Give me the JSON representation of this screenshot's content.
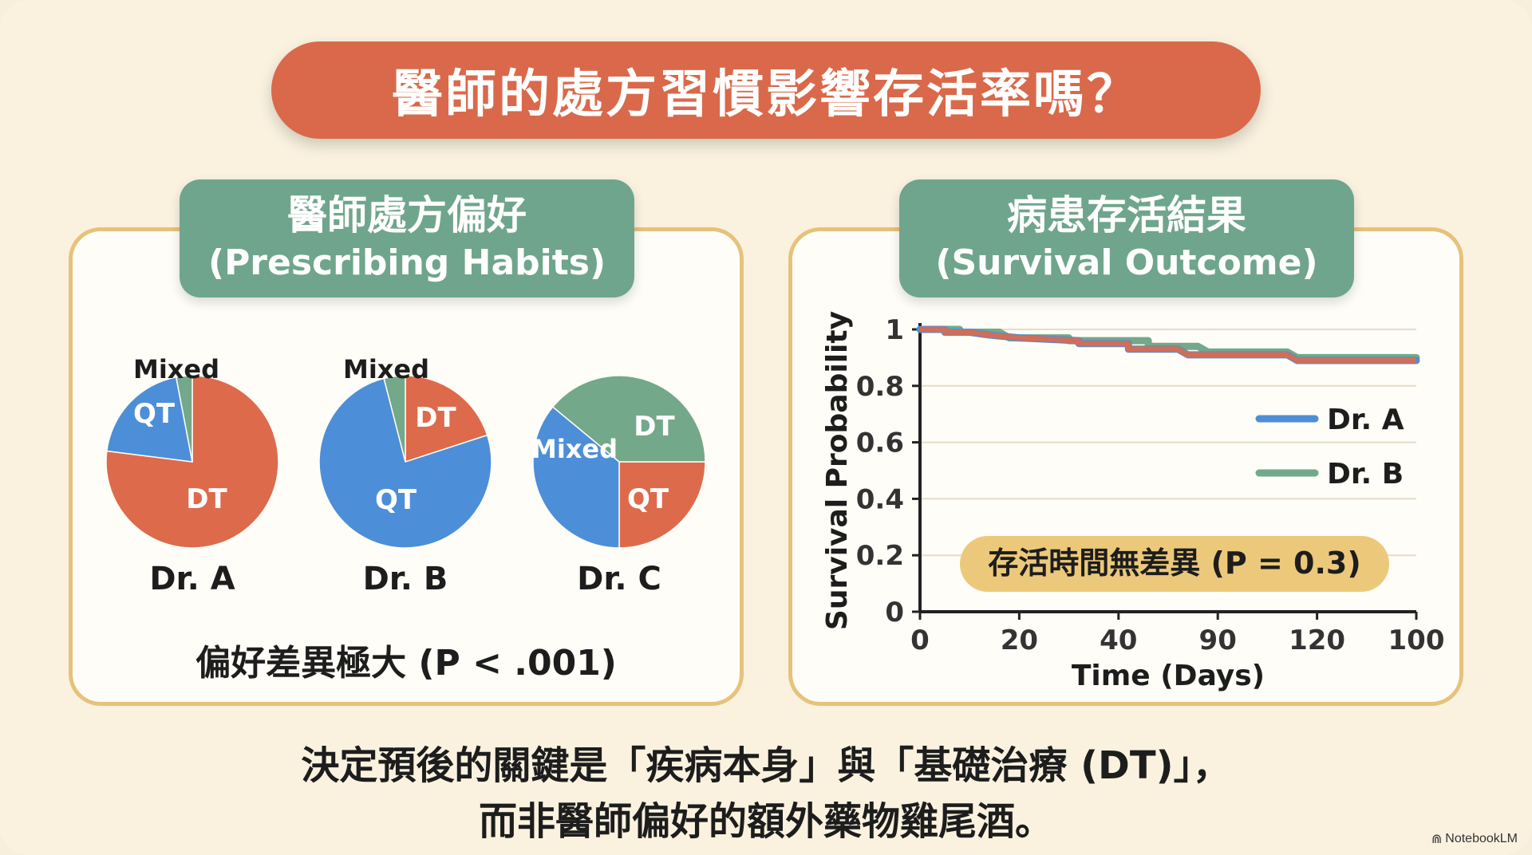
{
  "title": "醫師的處方習慣影響存活率嗎？",
  "left_panel": {
    "tab_zh": "醫師處方偏好",
    "tab_en": "(Prescribing Habits)",
    "pvalue_text": "偏好差異極大 (P < .001)"
  },
  "right_panel": {
    "tab_zh": "病患存活結果",
    "tab_en": "(Survival Outcome)",
    "pvalue_text": "存活時間無差異 (P = 0.3)"
  },
  "conclusion_line1": "決定預後的關鍵是「疾病本身」與「基礎治療 (DT)」，",
  "conclusion_line2": "而非醫師偏好的額外藥物雞尾酒。",
  "brand": "NotebookLM",
  "colors": {
    "DT": "#de6a4c",
    "QT": "#4d8ed8",
    "Mixed": "#73a88a",
    "title": "#d9694a",
    "tab": "#6fa58c"
  },
  "chart_data": [
    {
      "type": "pie",
      "title": "Dr. A",
      "categories": [
        "DT",
        "QT",
        "Mixed"
      ],
      "values": [
        77,
        20,
        3
      ]
    },
    {
      "type": "pie",
      "title": "Dr. B",
      "categories": [
        "DT",
        "QT",
        "Mixed"
      ],
      "values": [
        20,
        76,
        4
      ]
    },
    {
      "type": "pie",
      "title": "Dr. C",
      "categories": [
        "DT",
        "QT",
        "Mixed"
      ],
      "values": [
        25,
        36,
        39
      ]
    },
    {
      "type": "line",
      "xlabel": "Time (Days)",
      "ylabel": "Survival Probability",
      "x_ticks": [
        "0",
        "20",
        "40",
        "90",
        "120",
        "100"
      ],
      "y_ticks": [
        "0",
        "0.2",
        "0.4",
        "0.6",
        "0.8",
        "1"
      ],
      "ylim": [
        0,
        1
      ],
      "legend_position": "right",
      "series": [
        {
          "name": "Dr. A",
          "color": "#4d8ed8",
          "points": [
            [
              0,
              1
            ],
            [
              0.05,
              1
            ],
            [
              0.05,
              0.99
            ],
            [
              0.1,
              0.99
            ],
            [
              0.14,
              0.98
            ],
            [
              0.2,
              0.97
            ],
            [
              0.32,
              0.96
            ],
            [
              0.32,
              0.95
            ],
            [
              0.42,
              0.95
            ],
            [
              0.42,
              0.93
            ],
            [
              0.52,
              0.93
            ],
            [
              0.54,
              0.91
            ],
            [
              0.74,
              0.91
            ],
            [
              0.76,
              0.89
            ],
            [
              1,
              0.89
            ]
          ]
        },
        {
          "name": "Dr. B",
          "color": "#73a88a",
          "points": [
            [
              0,
              1
            ],
            [
              0.08,
              1
            ],
            [
              0.08,
              0.99
            ],
            [
              0.16,
              0.99
            ],
            [
              0.18,
              0.97
            ],
            [
              0.3,
              0.97
            ],
            [
              0.3,
              0.96
            ],
            [
              0.46,
              0.96
            ],
            [
              0.46,
              0.94
            ],
            [
              0.56,
              0.94
            ],
            [
              0.58,
              0.92
            ],
            [
              0.74,
              0.92
            ],
            [
              0.76,
              0.9
            ],
            [
              1,
              0.9
            ]
          ]
        }
      ]
    }
  ]
}
